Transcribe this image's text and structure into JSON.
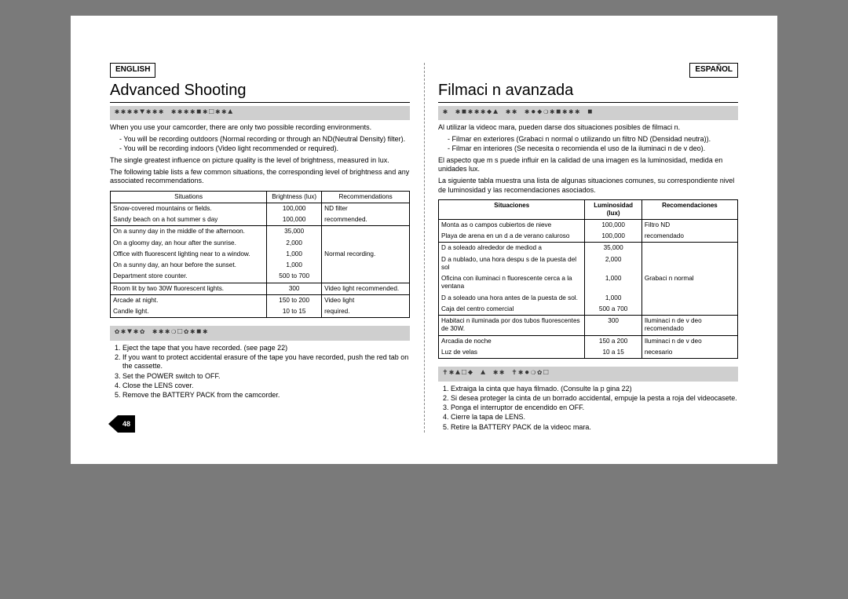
{
  "page_number": "48",
  "left": {
    "lang": "ENGLISH",
    "title": "Advanced Shooting",
    "section1_head": "✱✱✱✱▼✱✱✱ ✱✱✱✱■✱□✱✱▲",
    "intro": "When you use your camcorder, there are only two possible recording environments.",
    "bullet1": "-   You will be recording outdoors (Normal recording or through an ND(Neutral Density) filter).",
    "bullet2": "-   You will be recording indoors (Video light recommended or required).",
    "para2": "The single greatest influence on picture quality is the level of brightness, measured in lux.",
    "para3": "The following table lists a few common situations, the corresponding level of brightness and  any associated recommendations.",
    "table": {
      "headers": [
        "Situations",
        "Brightness (lux)",
        "Recommendations"
      ],
      "groups": [
        {
          "rows": [
            [
              "Snow-covered mountains or fields.",
              "100,000",
              "ND filter"
            ],
            [
              "Sandy beach on a hot summer s day",
              "100,000",
              "recommended."
            ]
          ]
        },
        {
          "rows": [
            [
              "On a sunny day in the middle of the afternoon.",
              "35,000",
              ""
            ],
            [
              "On a gloomy day, an hour after the sunrise.",
              "2,000",
              ""
            ],
            [
              "Office with fluorescent lighting near to a window.",
              "1,000",
              "Normal recording."
            ],
            [
              "On a sunny day, an hour before the sunset.",
              "1,000",
              ""
            ],
            [
              "Department store counter.",
              "500 to 700",
              ""
            ]
          ]
        },
        {
          "rows": [
            [
              "Room lit by two 30W fluorescent lights.",
              "300",
              "Video light recommended."
            ]
          ]
        },
        {
          "rows": [
            [
              "Arcade at night.",
              "150 to 200",
              "Video light"
            ],
            [
              "Candle light.",
              "10 to 15",
              "required."
            ]
          ]
        }
      ]
    },
    "section2_head": "✿✱▼✱✿ ✱✱✱❍□✿✱■✱",
    "steps": [
      "Eject the tape that you have recorded. (see page 22)",
      "If you want to protect accidental erasure of the tape you have recorded, push the red tab on the cassette.",
      "Set the POWER switch to OFF.",
      "Close the LENS cover.",
      "Remove the BATTERY PACK from the camcorder."
    ]
  },
  "right": {
    "lang": "ESPAÑOL",
    "title": "Filmaci n avanzada",
    "section1_head": "✱ ✱■✱✱✱◆▲ ✱✱ ✱●◆❍✱■✱✱✱ ■",
    "intro": "Al utilizar la videoc mara, pueden darse dos situaciones posibles de filmaci n.",
    "bullet1": "-   Filmar en exteriores (Grabaci n normal o utilizando un filtro ND (Densidad neutra)).",
    "bullet2": "-   Filmar en interiores (Se necesita o recomienda el uso de la iluminaci n de v deo).",
    "para2": "El aspecto que m s puede influir en la calidad de una imagen es la luminosidad, medida en unidades lux.",
    "para3": "La siguiente tabla muestra una lista de algunas situaciones comunes, su correspondiente nivel de luminosidad y las recomendaciones asociados.",
    "table": {
      "headers": [
        "Situaciones",
        "Luminosidad (lux)",
        "Recomendaciones"
      ],
      "groups": [
        {
          "rows": [
            [
              "Monta as o campos cubiertos de nieve",
              "100,000",
              "Filtro ND"
            ],
            [
              "Playa de arena en un d a de verano caluroso",
              "100,000",
              "recomendado"
            ]
          ]
        },
        {
          "rows": [
            [
              "D a soleado alrededor de mediod a",
              "35,000",
              ""
            ],
            [
              "D a nublado, una hora despu s de la puesta del sol",
              "2,000",
              ""
            ],
            [
              "Oficina con iluminaci n fluorescente cerca a la ventana",
              "1,000",
              "Grabaci n normal"
            ],
            [
              "D a soleado una hora antes de la puesta de sol.",
              "1,000",
              ""
            ],
            [
              "Caja del centro comercial",
              "500 a 700",
              ""
            ]
          ]
        },
        {
          "rows": [
            [
              "Habitaci n iluminada por dos tubos fluorescentes de 30W.",
              "300",
              "Iluminaci n de v deo recomendado"
            ]
          ]
        },
        {
          "rows": [
            [
              "Arcadia de noche",
              "150 a 200",
              "Iluminaci n de v deo"
            ],
            [
              "Luz de velas",
              "10 a 15",
              "necesario"
            ]
          ]
        }
      ]
    },
    "section2_head": "✝✱▲□◆ ▲ ✱✱ ✝✱●❍✿□",
    "steps": [
      "Extraiga la cinta que haya filmado. (Consulte la p gina 22)",
      "Si desea proteger la cinta de un borrado accidental, empuje la pesta a roja del videocasete.",
      "Ponga el interruptor de encendido en OFF.",
      "Cierre la tapa de LENS.",
      "Retire la BATTERY PACK de la videoc mara."
    ]
  }
}
